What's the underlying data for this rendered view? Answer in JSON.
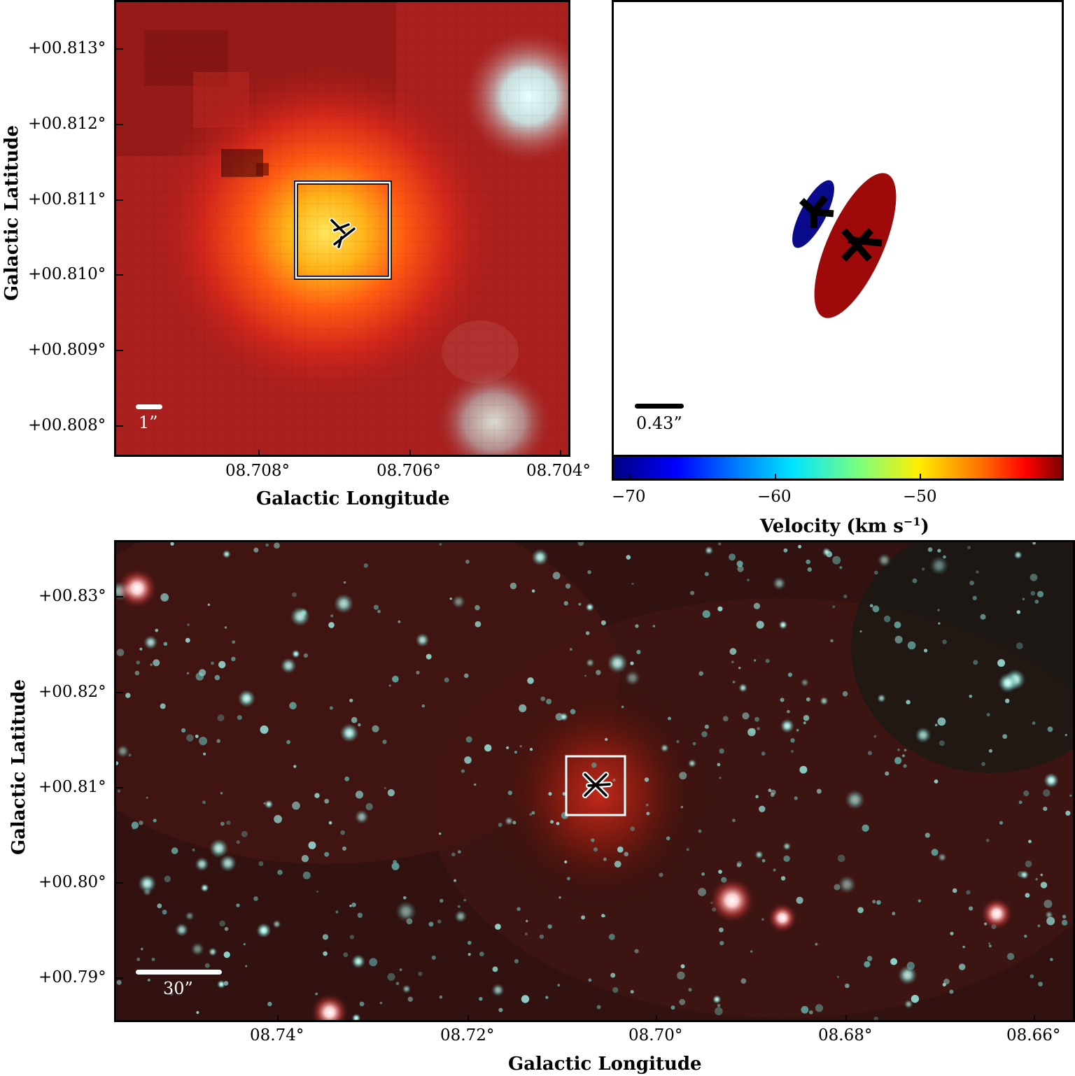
{
  "top_left": {
    "xlabel": "Galactic Longitude",
    "ylabel": "Galactic Latitude",
    "x_ticks": [
      "08.708°",
      "08.706°",
      "08.704°"
    ],
    "y_ticks": [
      "+00.813°",
      "+00.812°",
      "+00.811°",
      "+00.810°",
      "+00.809°",
      "+00.808°"
    ],
    "scale_label": "1”"
  },
  "top_right": {
    "scale_label": "0.43”",
    "colorbar_label": "Velocity (km s",
    "colorbar_label_sup": "−1",
    "colorbar_label_end": ")",
    "colorbar_ticks": [
      "−70",
      "−60",
      "−50"
    ],
    "colormap": [
      "#00007f",
      "#0000ff",
      "#00ffff",
      "#ffff00",
      "#ff0000",
      "#7f0000"
    ],
    "blue_component_color": "#0a0a8c",
    "red_component_color": "#9e0a0a"
  },
  "bottom": {
    "xlabel": "Galactic Longitude",
    "ylabel": "Galactic Latitude",
    "x_ticks": [
      "08.74°",
      "08.72°",
      "08.70°",
      "08.68°",
      "08.66°"
    ],
    "y_ticks": [
      "+00.83°",
      "+00.82°",
      "+00.81°",
      "+00.80°",
      "+00.79°"
    ],
    "scale_label": "30”"
  }
}
